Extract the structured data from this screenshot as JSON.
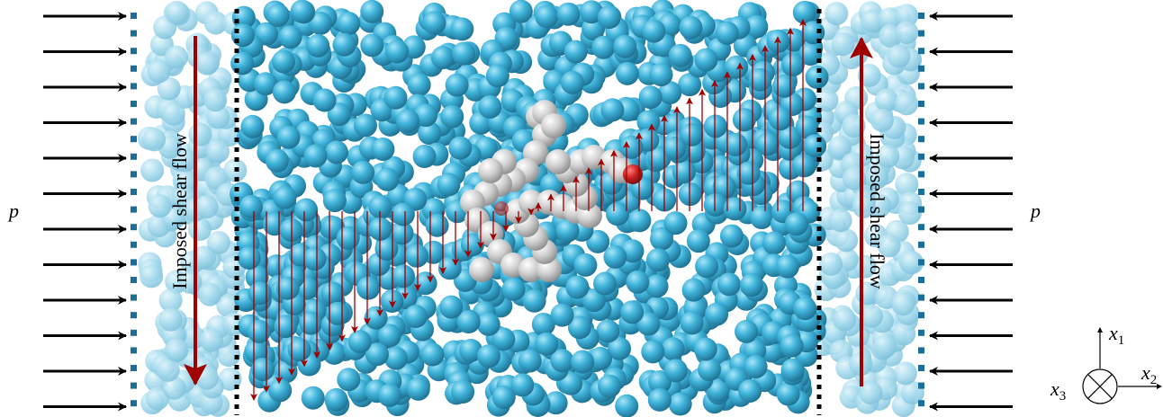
{
  "labels": {
    "left_flow": "Imposed shear flow",
    "right_flow": "Imposed shear flow",
    "left_pressure": "p",
    "right_pressure": "p"
  },
  "axes": [
    {
      "symbol": "x",
      "index": "1"
    },
    {
      "symbol": "x",
      "index": "2"
    },
    {
      "symbol": "x",
      "index": "3"
    }
  ]
}
